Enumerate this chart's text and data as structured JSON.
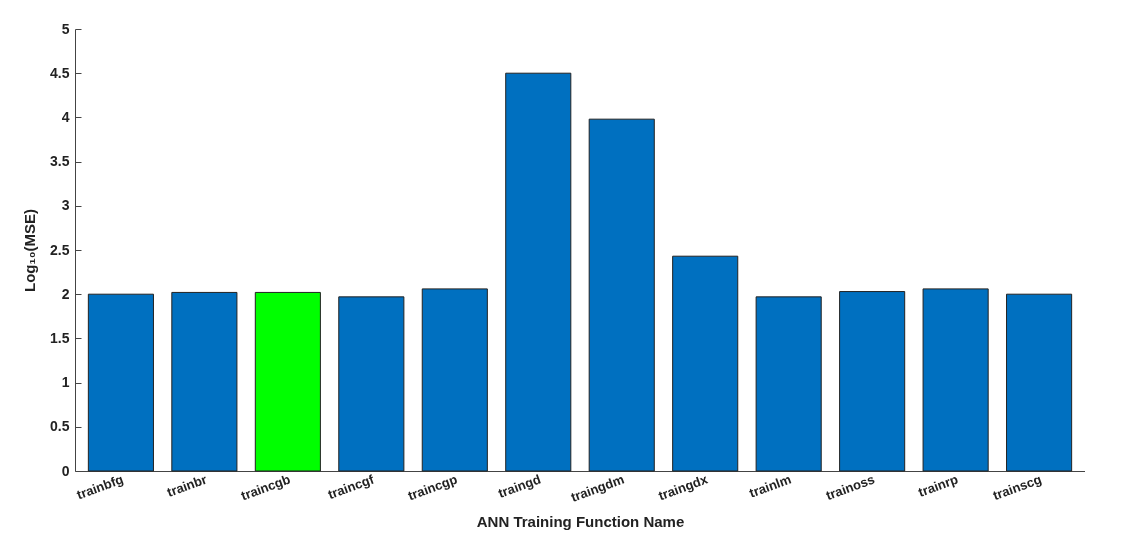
{
  "chart_data": {
    "type": "bar",
    "xlabel": "ANN Training Function Name",
    "ylabel": "Log₁₀(MSE)",
    "categories": [
      "trainbfg",
      "trainbr",
      "traincgb",
      "traincgf",
      "traincgp",
      "traingd",
      "traingdm",
      "traingdx",
      "trainlm",
      "trainoss",
      "trainrp",
      "trainscg"
    ],
    "values": [
      2.0,
      2.02,
      2.02,
      1.97,
      2.06,
      4.5,
      3.98,
      2.43,
      1.97,
      2.03,
      2.06,
      2.0
    ],
    "colors": [
      "#0070c0",
      "#0070c0",
      "#00ff00",
      "#0070c0",
      "#0070c0",
      "#0070c0",
      "#0070c0",
      "#0070c0",
      "#0070c0",
      "#0070c0",
      "#0070c0",
      "#0070c0"
    ],
    "ylim": [
      0,
      5
    ],
    "yticks": [
      0,
      0.5,
      1,
      1.5,
      2,
      2.5,
      3,
      3.5,
      4,
      4.5,
      5
    ],
    "grid": false
  }
}
